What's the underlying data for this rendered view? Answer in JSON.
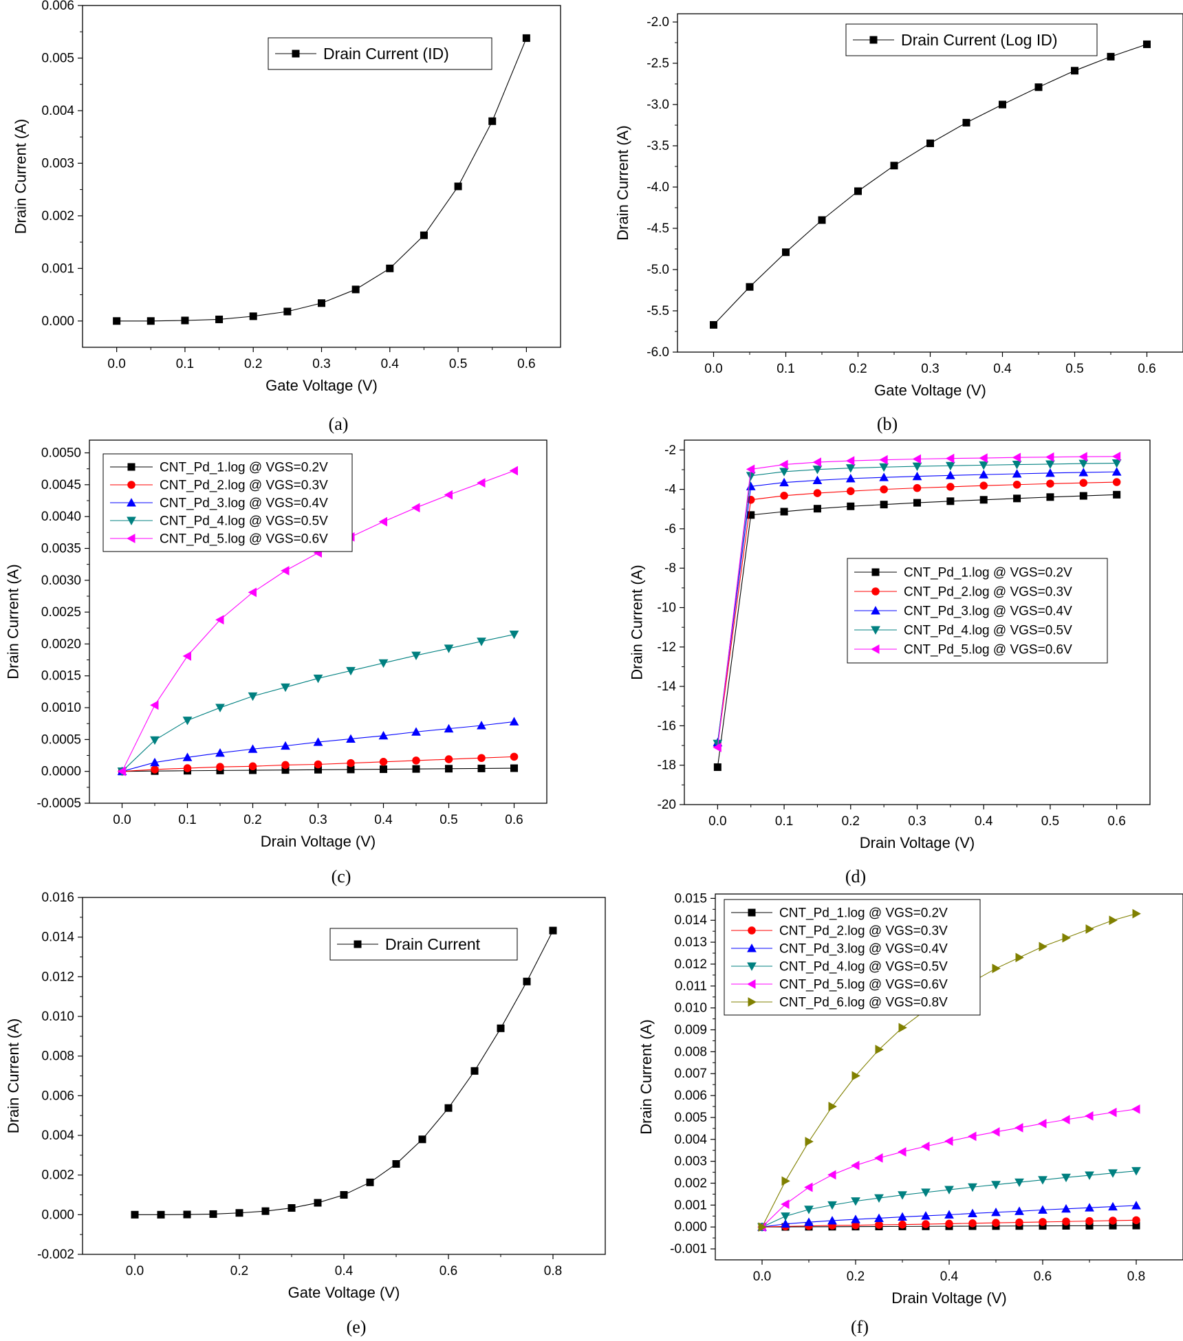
{
  "chart_data": [
    {
      "type": "line",
      "caption": "(a)",
      "xlabel": "Gate Voltage (V)",
      "ylabel": "Drain Current (A)",
      "xlim": [
        -0.05,
        0.65
      ],
      "ylim": [
        -0.0005,
        0.006
      ],
      "xticks": [
        0.0,
        0.1,
        0.2,
        0.3,
        0.4,
        0.5,
        0.6
      ],
      "xtick_labels": [
        "0.0",
        "0.1",
        "0.2",
        "0.3",
        "0.4",
        "0.5",
        "0.6"
      ],
      "yticks": [
        0.0,
        0.001,
        0.002,
        0.003,
        0.004,
        0.005,
        0.006
      ],
      "ytick_labels": [
        "0.000",
        "0.001",
        "0.002",
        "0.003",
        "0.004",
        "0.005",
        "0.006"
      ],
      "legend_position": "top-right",
      "series": [
        {
          "name": "Drain Current (ID)",
          "color": "#000000",
          "marker": "square",
          "x": [
            0.0,
            0.05,
            0.1,
            0.15,
            0.2,
            0.25,
            0.3,
            0.35,
            0.4,
            0.45,
            0.5,
            0.55,
            0.6
          ],
          "y": [
            0.0,
            0.0,
            1e-05,
            3e-05,
            9e-05,
            0.00018,
            0.00034,
            0.0006,
            0.001,
            0.00163,
            0.00256,
            0.0038,
            0.00538
          ]
        }
      ]
    },
    {
      "type": "line",
      "caption": "(b)",
      "xlabel": "Gate Voltage (V)",
      "ylabel": "Drain Current (A)",
      "xlim": [
        -0.05,
        0.65
      ],
      "ylim": [
        -6.0,
        -1.9
      ],
      "xticks": [
        0.0,
        0.1,
        0.2,
        0.3,
        0.4,
        0.5,
        0.6
      ],
      "xtick_labels": [
        "0.0",
        "0.1",
        "0.2",
        "0.3",
        "0.4",
        "0.5",
        "0.6"
      ],
      "yticks": [
        -6.0,
        -5.5,
        -5.0,
        -4.5,
        -4.0,
        -3.5,
        -3.0,
        -2.5,
        -2.0
      ],
      "ytick_labels": [
        "-6.0",
        "-5.5",
        "-5.0",
        "-4.5",
        "-4.0",
        "-3.5",
        "-3.0",
        "-2.5",
        "-2.0"
      ],
      "legend_position": "top-right",
      "series": [
        {
          "name": "Drain Current (Log ID)",
          "color": "#000000",
          "marker": "square",
          "x": [
            0.0,
            0.05,
            0.1,
            0.15,
            0.2,
            0.25,
            0.3,
            0.35,
            0.4,
            0.45,
            0.5,
            0.55,
            0.6
          ],
          "y": [
            -5.67,
            -5.21,
            -4.79,
            -4.4,
            -4.05,
            -3.74,
            -3.47,
            -3.22,
            -3.0,
            -2.79,
            -2.59,
            -2.42,
            -2.27
          ]
        }
      ]
    },
    {
      "type": "line",
      "caption": "(c)",
      "xlabel": "Drain Voltage (V)",
      "ylabel": "Drain Current (A)",
      "xlim": [
        -0.05,
        0.65
      ],
      "ylim": [
        -0.0005,
        0.0052
      ],
      "xticks": [
        0.0,
        0.1,
        0.2,
        0.3,
        0.4,
        0.5,
        0.6
      ],
      "xtick_labels": [
        "0.0",
        "0.1",
        "0.2",
        "0.3",
        "0.4",
        "0.5",
        "0.6"
      ],
      "yticks": [
        -0.0005,
        0.0,
        0.0005,
        0.001,
        0.0015,
        0.002,
        0.0025,
        0.003,
        0.0035,
        0.004,
        0.0045,
        0.005
      ],
      "ytick_labels": [
        "-0.0005",
        "0.0000",
        "0.0005",
        "0.0010",
        "0.0015",
        "0.0020",
        "0.0025",
        "0.0030",
        "0.0035",
        "0.0040",
        "0.0045",
        "0.0050"
      ],
      "legend_position": "top-left",
      "series": [
        {
          "name": "CNT_Pd_1.log @ VGS=0.2V",
          "color": "#000000",
          "marker": "square",
          "x": [
            0.0,
            0.05,
            0.1,
            0.15,
            0.2,
            0.25,
            0.3,
            0.35,
            0.4,
            0.45,
            0.5,
            0.55,
            0.6
          ],
          "y": [
            0.0,
            5e-06,
            1e-05,
            1.4e-05,
            1.8e-05,
            2.2e-05,
            2.6e-05,
            3e-05,
            3.4e-05,
            3.8e-05,
            4.2e-05,
            4.6e-05,
            5e-05
          ]
        },
        {
          "name": "CNT_Pd_2.log @ VGS=0.3V",
          "color": "#ff0000",
          "marker": "circle",
          "x": [
            0.0,
            0.05,
            0.1,
            0.15,
            0.2,
            0.25,
            0.3,
            0.35,
            0.4,
            0.45,
            0.5,
            0.55,
            0.6
          ],
          "y": [
            0.0,
            3e-05,
            5e-05,
            7e-05,
            8e-05,
            0.0001,
            0.00011,
            0.00013,
            0.00015,
            0.00017,
            0.00019,
            0.00021,
            0.00023
          ]
        },
        {
          "name": "CNT_Pd_3.log @ VGS=0.4V",
          "color": "#0000ff",
          "marker": "triangle-up",
          "x": [
            0.0,
            0.05,
            0.1,
            0.15,
            0.2,
            0.25,
            0.3,
            0.35,
            0.4,
            0.45,
            0.5,
            0.55,
            0.6
          ],
          "y": [
            0.0,
            0.00014,
            0.00022,
            0.00029,
            0.00035,
            0.0004,
            0.00046,
            0.00051,
            0.00056,
            0.00062,
            0.00067,
            0.00072,
            0.00078
          ]
        },
        {
          "name": "CNT_Pd_4.log @ VGS=0.5V",
          "color": "#008080",
          "marker": "triangle-down",
          "x": [
            0.0,
            0.05,
            0.1,
            0.15,
            0.2,
            0.25,
            0.3,
            0.35,
            0.4,
            0.45,
            0.5,
            0.55,
            0.6
          ],
          "y": [
            0.0,
            0.00049,
            0.0008,
            0.001,
            0.00118,
            0.00132,
            0.00146,
            0.00158,
            0.0017,
            0.00182,
            0.00193,
            0.00204,
            0.00215
          ]
        },
        {
          "name": "CNT_Pd_5.log @ VGS=0.6V",
          "color": "#ff00ff",
          "marker": "triangle-left",
          "x": [
            0.0,
            0.05,
            0.1,
            0.15,
            0.2,
            0.25,
            0.3,
            0.35,
            0.4,
            0.45,
            0.5,
            0.55,
            0.6
          ],
          "y": [
            0.0,
            0.00104,
            0.00181,
            0.00238,
            0.00281,
            0.00315,
            0.00343,
            0.00368,
            0.00392,
            0.00414,
            0.00434,
            0.00453,
            0.00472
          ]
        }
      ]
    },
    {
      "type": "line",
      "caption": "(d)",
      "xlabel": "Drain Voltage (V)",
      "ylabel": "Drain Current (A)",
      "xlim": [
        -0.05,
        0.65
      ],
      "ylim": [
        -20,
        -1.5
      ],
      "xticks": [
        0.0,
        0.1,
        0.2,
        0.3,
        0.4,
        0.5,
        0.6
      ],
      "xtick_labels": [
        "0.0",
        "0.1",
        "0.2",
        "0.3",
        "0.4",
        "0.5",
        "0.6"
      ],
      "yticks": [
        -20,
        -18,
        -16,
        -14,
        -12,
        -10,
        -8,
        -6,
        -4,
        -2
      ],
      "ytick_labels": [
        "-20",
        "-18",
        "-16",
        "-14",
        "-12",
        "-10",
        "-8",
        "-6",
        "-4",
        "-2"
      ],
      "legend_position": "center-right",
      "series": [
        {
          "name": "CNT_Pd_1.log @ VGS=0.2V",
          "color": "#000000",
          "marker": "square",
          "x": [
            0.0,
            0.05,
            0.1,
            0.15,
            0.2,
            0.25,
            0.3,
            0.35,
            0.4,
            0.45,
            0.5,
            0.55,
            0.6
          ],
          "y": [
            -18.1,
            -5.3,
            -5.13,
            -4.98,
            -4.86,
            -4.77,
            -4.68,
            -4.6,
            -4.53,
            -4.46,
            -4.39,
            -4.33,
            -4.27
          ]
        },
        {
          "name": "CNT_Pd_2.log @ VGS=0.3V",
          "color": "#ff0000",
          "marker": "circle",
          "x": [
            0.0,
            0.05,
            0.1,
            0.15,
            0.2,
            0.25,
            0.3,
            0.35,
            0.4,
            0.45,
            0.5,
            0.55,
            0.6
          ],
          "y": [
            -17.0,
            -4.53,
            -4.32,
            -4.19,
            -4.09,
            -4.0,
            -3.93,
            -3.87,
            -3.81,
            -3.76,
            -3.71,
            -3.67,
            -3.63
          ]
        },
        {
          "name": "CNT_Pd_3.log @ VGS=0.4V",
          "color": "#0000ff",
          "marker": "triangle-up",
          "x": [
            0.0,
            0.05,
            0.1,
            0.15,
            0.2,
            0.25,
            0.3,
            0.35,
            0.4,
            0.45,
            0.5,
            0.55,
            0.6
          ],
          "y": [
            -16.85,
            -3.85,
            -3.65,
            -3.54,
            -3.45,
            -3.39,
            -3.34,
            -3.29,
            -3.25,
            -3.21,
            -3.17,
            -3.14,
            -3.11
          ]
        },
        {
          "name": "CNT_Pd_4.log @ VGS=0.5V",
          "color": "#008080",
          "marker": "triangle-down",
          "x": [
            0.0,
            0.05,
            0.1,
            0.15,
            0.2,
            0.25,
            0.3,
            0.35,
            0.4,
            0.45,
            0.5,
            0.55,
            0.6
          ],
          "y": [
            -16.9,
            -3.31,
            -3.1,
            -2.99,
            -2.92,
            -2.87,
            -2.83,
            -2.8,
            -2.77,
            -2.74,
            -2.72,
            -2.69,
            -2.67
          ]
        },
        {
          "name": "CNT_Pd_5.log @ VGS=0.6V",
          "color": "#ff00ff",
          "marker": "triangle-left",
          "x": [
            0.0,
            0.05,
            0.1,
            0.15,
            0.2,
            0.25,
            0.3,
            0.35,
            0.4,
            0.45,
            0.5,
            0.55,
            0.6
          ],
          "y": [
            -17.1,
            -2.98,
            -2.74,
            -2.62,
            -2.55,
            -2.5,
            -2.46,
            -2.43,
            -2.41,
            -2.38,
            -2.36,
            -2.34,
            -2.33
          ]
        }
      ]
    },
    {
      "type": "line",
      "caption": "(e)",
      "xlabel": "Gate Voltage (V)",
      "ylabel": "Drain Current (A)",
      "xlim": [
        -0.1,
        0.9
      ],
      "ylim": [
        -0.002,
        0.016
      ],
      "xticks": [
        0.0,
        0.2,
        0.4,
        0.6,
        0.8
      ],
      "xtick_labels": [
        "0.0",
        "0.2",
        "0.4",
        "0.6",
        "0.8"
      ],
      "yticks": [
        -0.002,
        0.0,
        0.002,
        0.004,
        0.006,
        0.008,
        0.01,
        0.012,
        0.014,
        0.016
      ],
      "ytick_labels": [
        "-0.002",
        "0.000",
        "0.002",
        "0.004",
        "0.006",
        "0.008",
        "0.010",
        "0.012",
        "0.014",
        "0.016"
      ],
      "legend_position": "top-right",
      "series": [
        {
          "name": "Drain Current",
          "color": "#000000",
          "marker": "square",
          "x": [
            0.0,
            0.05,
            0.1,
            0.15,
            0.2,
            0.25,
            0.3,
            0.35,
            0.4,
            0.45,
            0.5,
            0.55,
            0.6,
            0.65,
            0.7,
            0.75,
            0.8
          ],
          "y": [
            0.0,
            0.0,
            1e-05,
            3e-05,
            9e-05,
            0.00018,
            0.00034,
            0.0006,
            0.001,
            0.00163,
            0.00256,
            0.0038,
            0.00538,
            0.00725,
            0.0094,
            0.01176,
            0.01433
          ]
        }
      ]
    },
    {
      "type": "line",
      "caption": "(f)",
      "xlabel": "Drain Voltage (V)",
      "ylabel": "Drain Current (A)",
      "xlim": [
        -0.1,
        0.9
      ],
      "ylim": [
        -0.0015,
        0.0152
      ],
      "xticks": [
        0.0,
        0.2,
        0.4,
        0.6,
        0.8
      ],
      "xtick_labels": [
        "0.0",
        "0.2",
        "0.4",
        "0.6",
        "0.8"
      ],
      "yticks": [
        -0.001,
        0.0,
        0.001,
        0.002,
        0.003,
        0.004,
        0.005,
        0.006,
        0.007,
        0.008,
        0.009,
        0.01,
        0.011,
        0.012,
        0.013,
        0.014,
        0.015
      ],
      "ytick_labels": [
        "-0.001",
        "0.000",
        "0.001",
        "0.002",
        "0.003",
        "0.004",
        "0.005",
        "0.006",
        "0.007",
        "0.008",
        "0.009",
        "0.010",
        "0.011",
        "0.012",
        "0.013",
        "0.014",
        "0.015"
      ],
      "legend_position": "top-left",
      "series": [
        {
          "name": "CNT_Pd_1.log @ VGS=0.2V",
          "color": "#000000",
          "marker": "square",
          "x": [
            0.0,
            0.05,
            0.1,
            0.15,
            0.2,
            0.25,
            0.3,
            0.35,
            0.4,
            0.45,
            0.5,
            0.55,
            0.6,
            0.65,
            0.7,
            0.75,
            0.8
          ],
          "y": [
            0.0,
            5e-06,
            1e-05,
            1.4e-05,
            1.8e-05,
            2.2e-05,
            2.6e-05,
            3e-05,
            3.4e-05,
            3.8e-05,
            4.2e-05,
            4.6e-05,
            5e-05,
            5.4e-05,
            5.8e-05,
            6.2e-05,
            6.6e-05
          ]
        },
        {
          "name": "CNT_Pd_2.log @ VGS=0.3V",
          "color": "#ff0000",
          "marker": "circle",
          "x": [
            0.0,
            0.05,
            0.1,
            0.15,
            0.2,
            0.25,
            0.3,
            0.35,
            0.4,
            0.45,
            0.5,
            0.55,
            0.6,
            0.65,
            0.7,
            0.75,
            0.8
          ],
          "y": [
            0.0,
            3e-05,
            5e-05,
            7e-05,
            8e-05,
            0.0001,
            0.00011,
            0.00013,
            0.00015,
            0.00017,
            0.00019,
            0.00021,
            0.00023,
            0.00025,
            0.00027,
            0.00029,
            0.00031
          ]
        },
        {
          "name": "CNT_Pd_3.log @ VGS=0.4V",
          "color": "#0000ff",
          "marker": "triangle-up",
          "x": [
            0.0,
            0.05,
            0.1,
            0.15,
            0.2,
            0.25,
            0.3,
            0.35,
            0.4,
            0.45,
            0.5,
            0.55,
            0.6,
            0.65,
            0.7,
            0.75,
            0.8
          ],
          "y": [
            0.0,
            0.00014,
            0.00022,
            0.00029,
            0.00035,
            0.0004,
            0.00046,
            0.00051,
            0.00056,
            0.00062,
            0.00067,
            0.00072,
            0.00078,
            0.00083,
            0.00088,
            0.00093,
            0.00098
          ]
        },
        {
          "name": "CNT_Pd_4.log @ VGS=0.5V",
          "color": "#008080",
          "marker": "triangle-down",
          "x": [
            0.0,
            0.05,
            0.1,
            0.15,
            0.2,
            0.25,
            0.3,
            0.35,
            0.4,
            0.45,
            0.5,
            0.55,
            0.6,
            0.65,
            0.7,
            0.75,
            0.8
          ],
          "y": [
            0.0,
            0.00049,
            0.0008,
            0.001,
            0.00118,
            0.00132,
            0.00146,
            0.00158,
            0.0017,
            0.00182,
            0.00193,
            0.00204,
            0.00215,
            0.00226,
            0.00236,
            0.00246,
            0.00256
          ]
        },
        {
          "name": "CNT_Pd_5.log @ VGS=0.6V",
          "color": "#ff00ff",
          "marker": "triangle-left",
          "x": [
            0.0,
            0.05,
            0.1,
            0.15,
            0.2,
            0.25,
            0.3,
            0.35,
            0.4,
            0.45,
            0.5,
            0.55,
            0.6,
            0.65,
            0.7,
            0.75,
            0.8
          ],
          "y": [
            0.0,
            0.00104,
            0.00181,
            0.00238,
            0.00281,
            0.00315,
            0.00343,
            0.00368,
            0.00392,
            0.00414,
            0.00434,
            0.00453,
            0.00472,
            0.0049,
            0.00507,
            0.00523,
            0.00538
          ]
        },
        {
          "name": "CNT_Pd_6.log @ VGS=0.8V",
          "color": "#808000",
          "marker": "triangle-right",
          "x": [
            0.0,
            0.05,
            0.1,
            0.15,
            0.2,
            0.25,
            0.3,
            0.35,
            0.4,
            0.45,
            0.5,
            0.55,
            0.6,
            0.65,
            0.7,
            0.75,
            0.8
          ],
          "y": [
            0.0,
            0.0021,
            0.0039,
            0.0055,
            0.0069,
            0.0081,
            0.0091,
            0.0099,
            0.0106,
            0.0112,
            0.0118,
            0.0123,
            0.0128,
            0.0132,
            0.0136,
            0.014,
            0.0143
          ]
        }
      ]
    }
  ]
}
